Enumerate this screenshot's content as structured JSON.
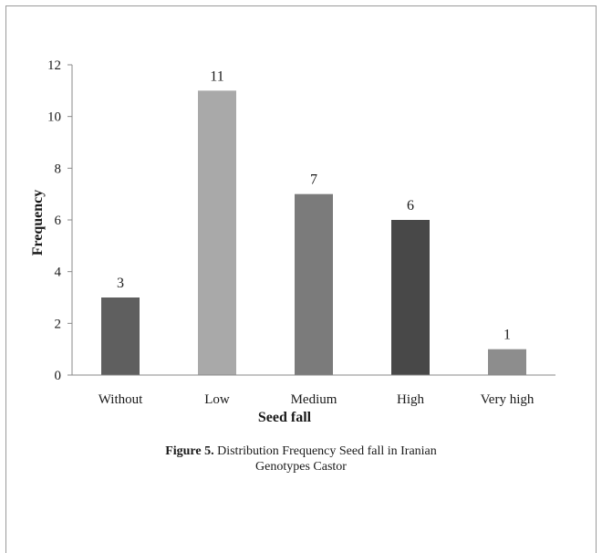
{
  "chart_data": {
    "type": "bar",
    "categories": [
      "Without",
      "Low",
      "Medium",
      "High",
      "Very high"
    ],
    "values": [
      3,
      11,
      7,
      6,
      1
    ],
    "colors": [
      "#5f5f5f",
      "#a9a9a9",
      "#7b7b7b",
      "#484848",
      "#8d8d8d"
    ],
    "xlabel": "Seed fall",
    "ylabel": "Frequency",
    "ylim": [
      0,
      12
    ],
    "yticks": [
      0,
      2,
      4,
      6,
      8,
      10,
      12
    ],
    "data_labels": true,
    "grid": false,
    "legend": "none"
  },
  "caption": {
    "prefix": "Figure 5.",
    "line1": " Distribution Frequency Seed fall in  Iranian",
    "line2": "Genotypes Castor"
  }
}
